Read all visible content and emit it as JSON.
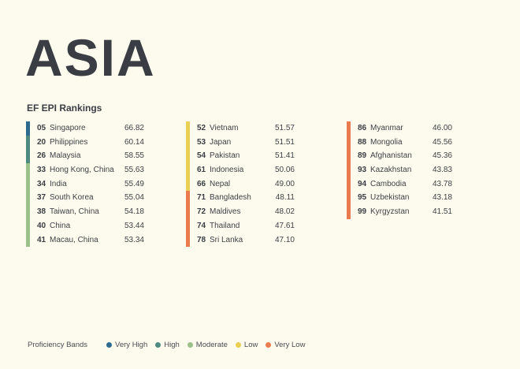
{
  "title": "ASIA",
  "subtitle": "EF EPI Rankings",
  "bands": {
    "very_high": {
      "label": "Very High",
      "color": "#2f6b8f"
    },
    "high": {
      "label": "High",
      "color": "#4e8a7f"
    },
    "moderate": {
      "label": "Moderate",
      "color": "#9cc08a"
    },
    "low": {
      "label": "Low",
      "color": "#e9cf52"
    },
    "very_low": {
      "label": "Very Low",
      "color": "#ea7b4e"
    }
  },
  "columns": [
    [
      {
        "rank": "05",
        "country": "Singapore",
        "score": "66.82",
        "band": "very_high"
      },
      {
        "rank": "20",
        "country": "Philippines",
        "score": "60.14",
        "band": "high"
      },
      {
        "rank": "26",
        "country": "Malaysia",
        "score": "58.55",
        "band": "high"
      },
      {
        "rank": "33",
        "country": "Hong Kong, China",
        "score": "55.63",
        "band": "moderate"
      },
      {
        "rank": "34",
        "country": "India",
        "score": "55.49",
        "band": "moderate"
      },
      {
        "rank": "37",
        "country": "South Korea",
        "score": "55.04",
        "band": "moderate"
      },
      {
        "rank": "38",
        "country": "Taiwan, China",
        "score": "54.18",
        "band": "moderate"
      },
      {
        "rank": "40",
        "country": "China",
        "score": "53.44",
        "band": "moderate"
      },
      {
        "rank": "41",
        "country": "Macau, China",
        "score": "53.34",
        "band": "moderate"
      }
    ],
    [
      {
        "rank": "52",
        "country": "Vietnam",
        "score": "51.57",
        "band": "low"
      },
      {
        "rank": "53",
        "country": "Japan",
        "score": "51.51",
        "band": "low"
      },
      {
        "rank": "54",
        "country": "Pakistan",
        "score": "51.41",
        "band": "low"
      },
      {
        "rank": "61",
        "country": "Indonesia",
        "score": "50.06",
        "band": "low"
      },
      {
        "rank": "66",
        "country": "Nepal",
        "score": "49.00",
        "band": "low"
      },
      {
        "rank": "71",
        "country": "Bangladesh",
        "score": "48.11",
        "band": "very_low"
      },
      {
        "rank": "72",
        "country": "Maldives",
        "score": "48.02",
        "band": "very_low"
      },
      {
        "rank": "74",
        "country": "Thailand",
        "score": "47.61",
        "band": "very_low"
      },
      {
        "rank": "78",
        "country": "Sri Lanka",
        "score": "47.10",
        "band": "very_low"
      }
    ],
    [
      {
        "rank": "86",
        "country": "Myanmar",
        "score": "46.00",
        "band": "very_low"
      },
      {
        "rank": "88",
        "country": "Mongolia",
        "score": "45.56",
        "band": "very_low"
      },
      {
        "rank": "89",
        "country": "Afghanistan",
        "score": "45.36",
        "band": "very_low"
      },
      {
        "rank": "93",
        "country": "Kazakhstan",
        "score": "43.83",
        "band": "very_low"
      },
      {
        "rank": "94",
        "country": "Cambodia",
        "score": "43.78",
        "band": "very_low"
      },
      {
        "rank": "95",
        "country": "Uzbekistan",
        "score": "43.18",
        "band": "very_low"
      },
      {
        "rank": "99",
        "country": "Kyrgyzstan",
        "score": "41.51",
        "band": "very_low"
      }
    ]
  ],
  "legend": {
    "title": "Proficiency Bands",
    "order": [
      "very_high",
      "high",
      "moderate",
      "low",
      "very_low"
    ]
  }
}
